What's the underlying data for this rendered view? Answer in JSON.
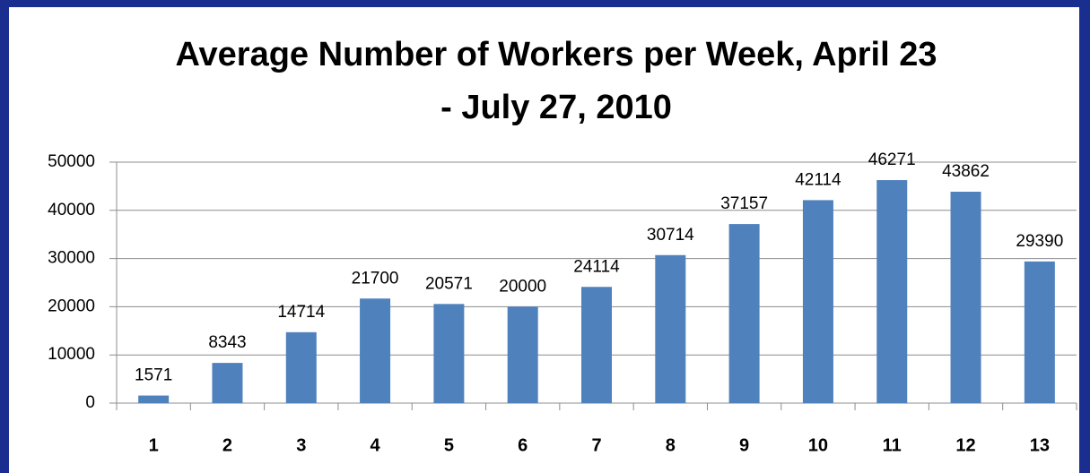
{
  "chart_data": {
    "type": "bar",
    "title": [
      "Average Number of Workers per Week, April 23",
      "- July 27, 2010"
    ],
    "categories": [
      "1",
      "2",
      "3",
      "4",
      "5",
      "6",
      "7",
      "8",
      "9",
      "10",
      "11",
      "12",
      "13"
    ],
    "values": [
      1571,
      8343,
      14714,
      21700,
      20571,
      20000,
      24114,
      30714,
      37157,
      42114,
      46271,
      43862,
      29390
    ],
    "color": "#4f81bd",
    "ylim": [
      0,
      50000
    ],
    "yticks": [
      0,
      10000,
      20000,
      30000,
      40000,
      50000
    ],
    "grid": true
  }
}
